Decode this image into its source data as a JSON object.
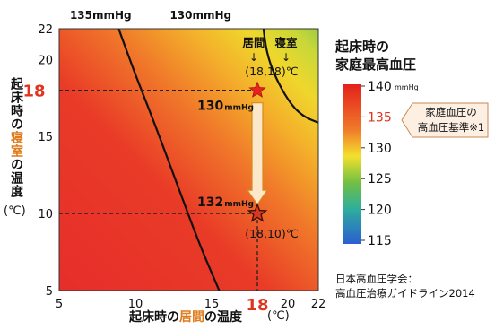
{
  "chart_data": {
    "type": "heatmap",
    "title": "起床時の\n家庭最高血圧",
    "xlabel": "起床時の居間の温度",
    "xlabel_parts": [
      "起床時の",
      "居間",
      "の温度"
    ],
    "xunit": "(℃)",
    "ylabel_parts": [
      "起床時の",
      "寝室",
      "の温度"
    ],
    "yunit": "(℃)",
    "xlim": [
      5,
      22
    ],
    "ylim": [
      5,
      22
    ],
    "xticks": [
      5,
      10,
      15,
      20,
      22
    ],
    "yticks": [
      5,
      10,
      15,
      20,
      22
    ],
    "x_highlight": "18",
    "y_highlight": "18",
    "colorbar": {
      "min": 115,
      "max": 140,
      "unit": "mmHg",
      "ticks": [
        140,
        135,
        130,
        125,
        120,
        115
      ],
      "highlight_tick": 135
    },
    "contours": [
      {
        "label": "135mmHg",
        "points": [
          [
            15.5,
            5
          ],
          [
            14.2,
            8
          ],
          [
            12.7,
            12
          ],
          [
            11.2,
            16
          ],
          [
            10,
            19
          ],
          [
            8.9,
            22
          ]
        ]
      },
      {
        "label": "130mmHg",
        "points": [
          [
            22,
            15.9
          ],
          [
            21,
            16.3
          ],
          [
            20.1,
            17.2
          ],
          [
            19.1,
            19
          ],
          [
            18.6,
            20.5
          ],
          [
            18.4,
            22
          ]
        ]
      }
    ],
    "points": [
      {
        "x": 18,
        "y": 18,
        "value_label": "130",
        "unit": "mmHg",
        "coord_label": "(18,18)℃"
      },
      {
        "x": 18,
        "y": 10,
        "value_label": "132",
        "unit": "mmHg",
        "coord_label": "(18,10)℃"
      }
    ],
    "column_labels": {
      "living": "居間",
      "bedroom": "寝室"
    },
    "reference_callout": "家庭血圧の\n高血圧基準※1",
    "source": "日本高血圧学会：\n高血圧治療ガイドライン2014",
    "colors": {
      "red": "#e8322a",
      "orange": "#f08a28",
      "yellow": "#f3e22a",
      "green": "#7cc23a",
      "highlight_text": "#e0341f",
      "arrow_fill": "#fbe7c9",
      "arrow_stroke": "#d98a1a"
    }
  }
}
